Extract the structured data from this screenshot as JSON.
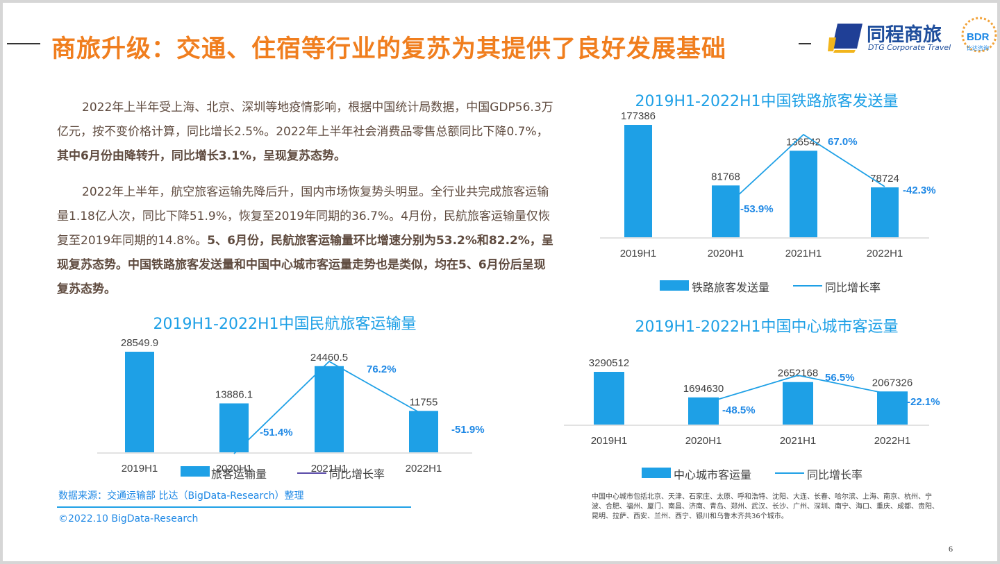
{
  "title": "商旅升级：交通、住宿等行业的复苏为其提供了良好发展基础",
  "logo": {
    "name": "同程商旅",
    "subtitle": "DTG Corporate Travel",
    "badge": "BDR",
    "badge_sub": "比达咨询"
  },
  "paragraph1": {
    "normal": "2022年上半年受上海、北京、深圳等地疫情影响，根据中国统计局数据，中国GDP56.3万亿元，按不变价格计算，同比增长2.5%。2022年上半年社会消费品零售总额同比下降0.7%，",
    "bold": "其中6月份由降转升，同比增长3.1%，呈现复苏态势。"
  },
  "paragraph2": {
    "normal": "2022年上半年，航空旅客运输先降后升，国内市场恢复势头明显。全行业共完成旅客运输量1.18亿人次，同比下降51.9%，恢复至2019年同期的36.7%。4月份，民航旅客运输量仅恢复至2019年同期的14.8%。",
    "bold": "5、6月份，民航旅客运输量环比增速分别为53.2%和82.2%，呈现复苏态势。中国铁路旅客发送量和中国中心城市客运量走势也是类似，均在5、6月份后呈现复苏态势。"
  },
  "colors": {
    "bar": "#1ea0e6",
    "line": "#1ea0e6",
    "pct": "#1e88e5",
    "title": "#f07e1e"
  },
  "chart_data": [
    {
      "id": "aviation",
      "type": "bar",
      "title": "2019H1-2022H1中国民航旅客运输量",
      "categories": [
        "2019H1",
        "2020H1",
        "2021H1",
        "2022H1"
      ],
      "series": [
        {
          "name": "旅客运输量",
          "type": "bar",
          "values": [
            28549.9,
            13886.1,
            24460.5,
            11755
          ],
          "labels": [
            "28549.9",
            "13886.1",
            "24460.5",
            "11755"
          ]
        },
        {
          "name": "同比增长率",
          "type": "line",
          "values": [
            null,
            -51.4,
            76.2,
            -51.9
          ],
          "labels": [
            "",
            "-51.4%",
            "76.2%",
            "-51.9%"
          ]
        }
      ],
      "legend": "bottom"
    },
    {
      "id": "rail",
      "type": "bar",
      "title": "2019H1-2022H1中国铁路旅客发送量",
      "categories": [
        "2019H1",
        "2020H1",
        "2021H1",
        "2022H1"
      ],
      "series": [
        {
          "name": "铁路旅客发送量",
          "type": "bar",
          "values": [
            177386,
            81768,
            136542,
            78724
          ],
          "labels": [
            "177386",
            "81768",
            "136542",
            "78724"
          ]
        },
        {
          "name": "同比增长率",
          "type": "line",
          "values": [
            null,
            -53.9,
            67.0,
            -42.3
          ],
          "labels": [
            "",
            "-53.9%",
            "67.0%",
            "-42.3%"
          ]
        }
      ],
      "legend": "bottom"
    },
    {
      "id": "city",
      "type": "bar",
      "title": "2019H1-2022H1中国中心城市客运量",
      "categories": [
        "2019H1",
        "2020H1",
        "2021H1",
        "2022H1"
      ],
      "series": [
        {
          "name": "中心城市客运量",
          "type": "bar",
          "values": [
            3290512,
            1694630,
            2652168,
            2067326
          ],
          "labels": [
            "3290512",
            "1694630",
            "2652168",
            "2067326"
          ]
        },
        {
          "name": "同比增长率",
          "type": "line",
          "values": [
            null,
            -48.5,
            56.5,
            -22.1
          ],
          "labels": [
            "",
            "-48.5%",
            "56.5%",
            "-22.1%"
          ]
        }
      ],
      "legend": "bottom"
    }
  ],
  "source": "数据来源：交通运输部  比达（BigData-Research）整理",
  "copyright": "©2022.10 BigData-Research",
  "footnote": "中国中心城市包括北京、天津、石家庄、太原、呼和浩特、沈阳、大连、长春、哈尔滨、上海、南京、杭州、宁波、合肥、福州、厦门、南昌、济南、青岛、郑州、武汉、长沙、广州、深圳、南宁、海口、重庆、成都、贵阳、昆明、拉萨、西安、兰州、西宁、银川和乌鲁木齐共36个城市。",
  "page_number": "6"
}
